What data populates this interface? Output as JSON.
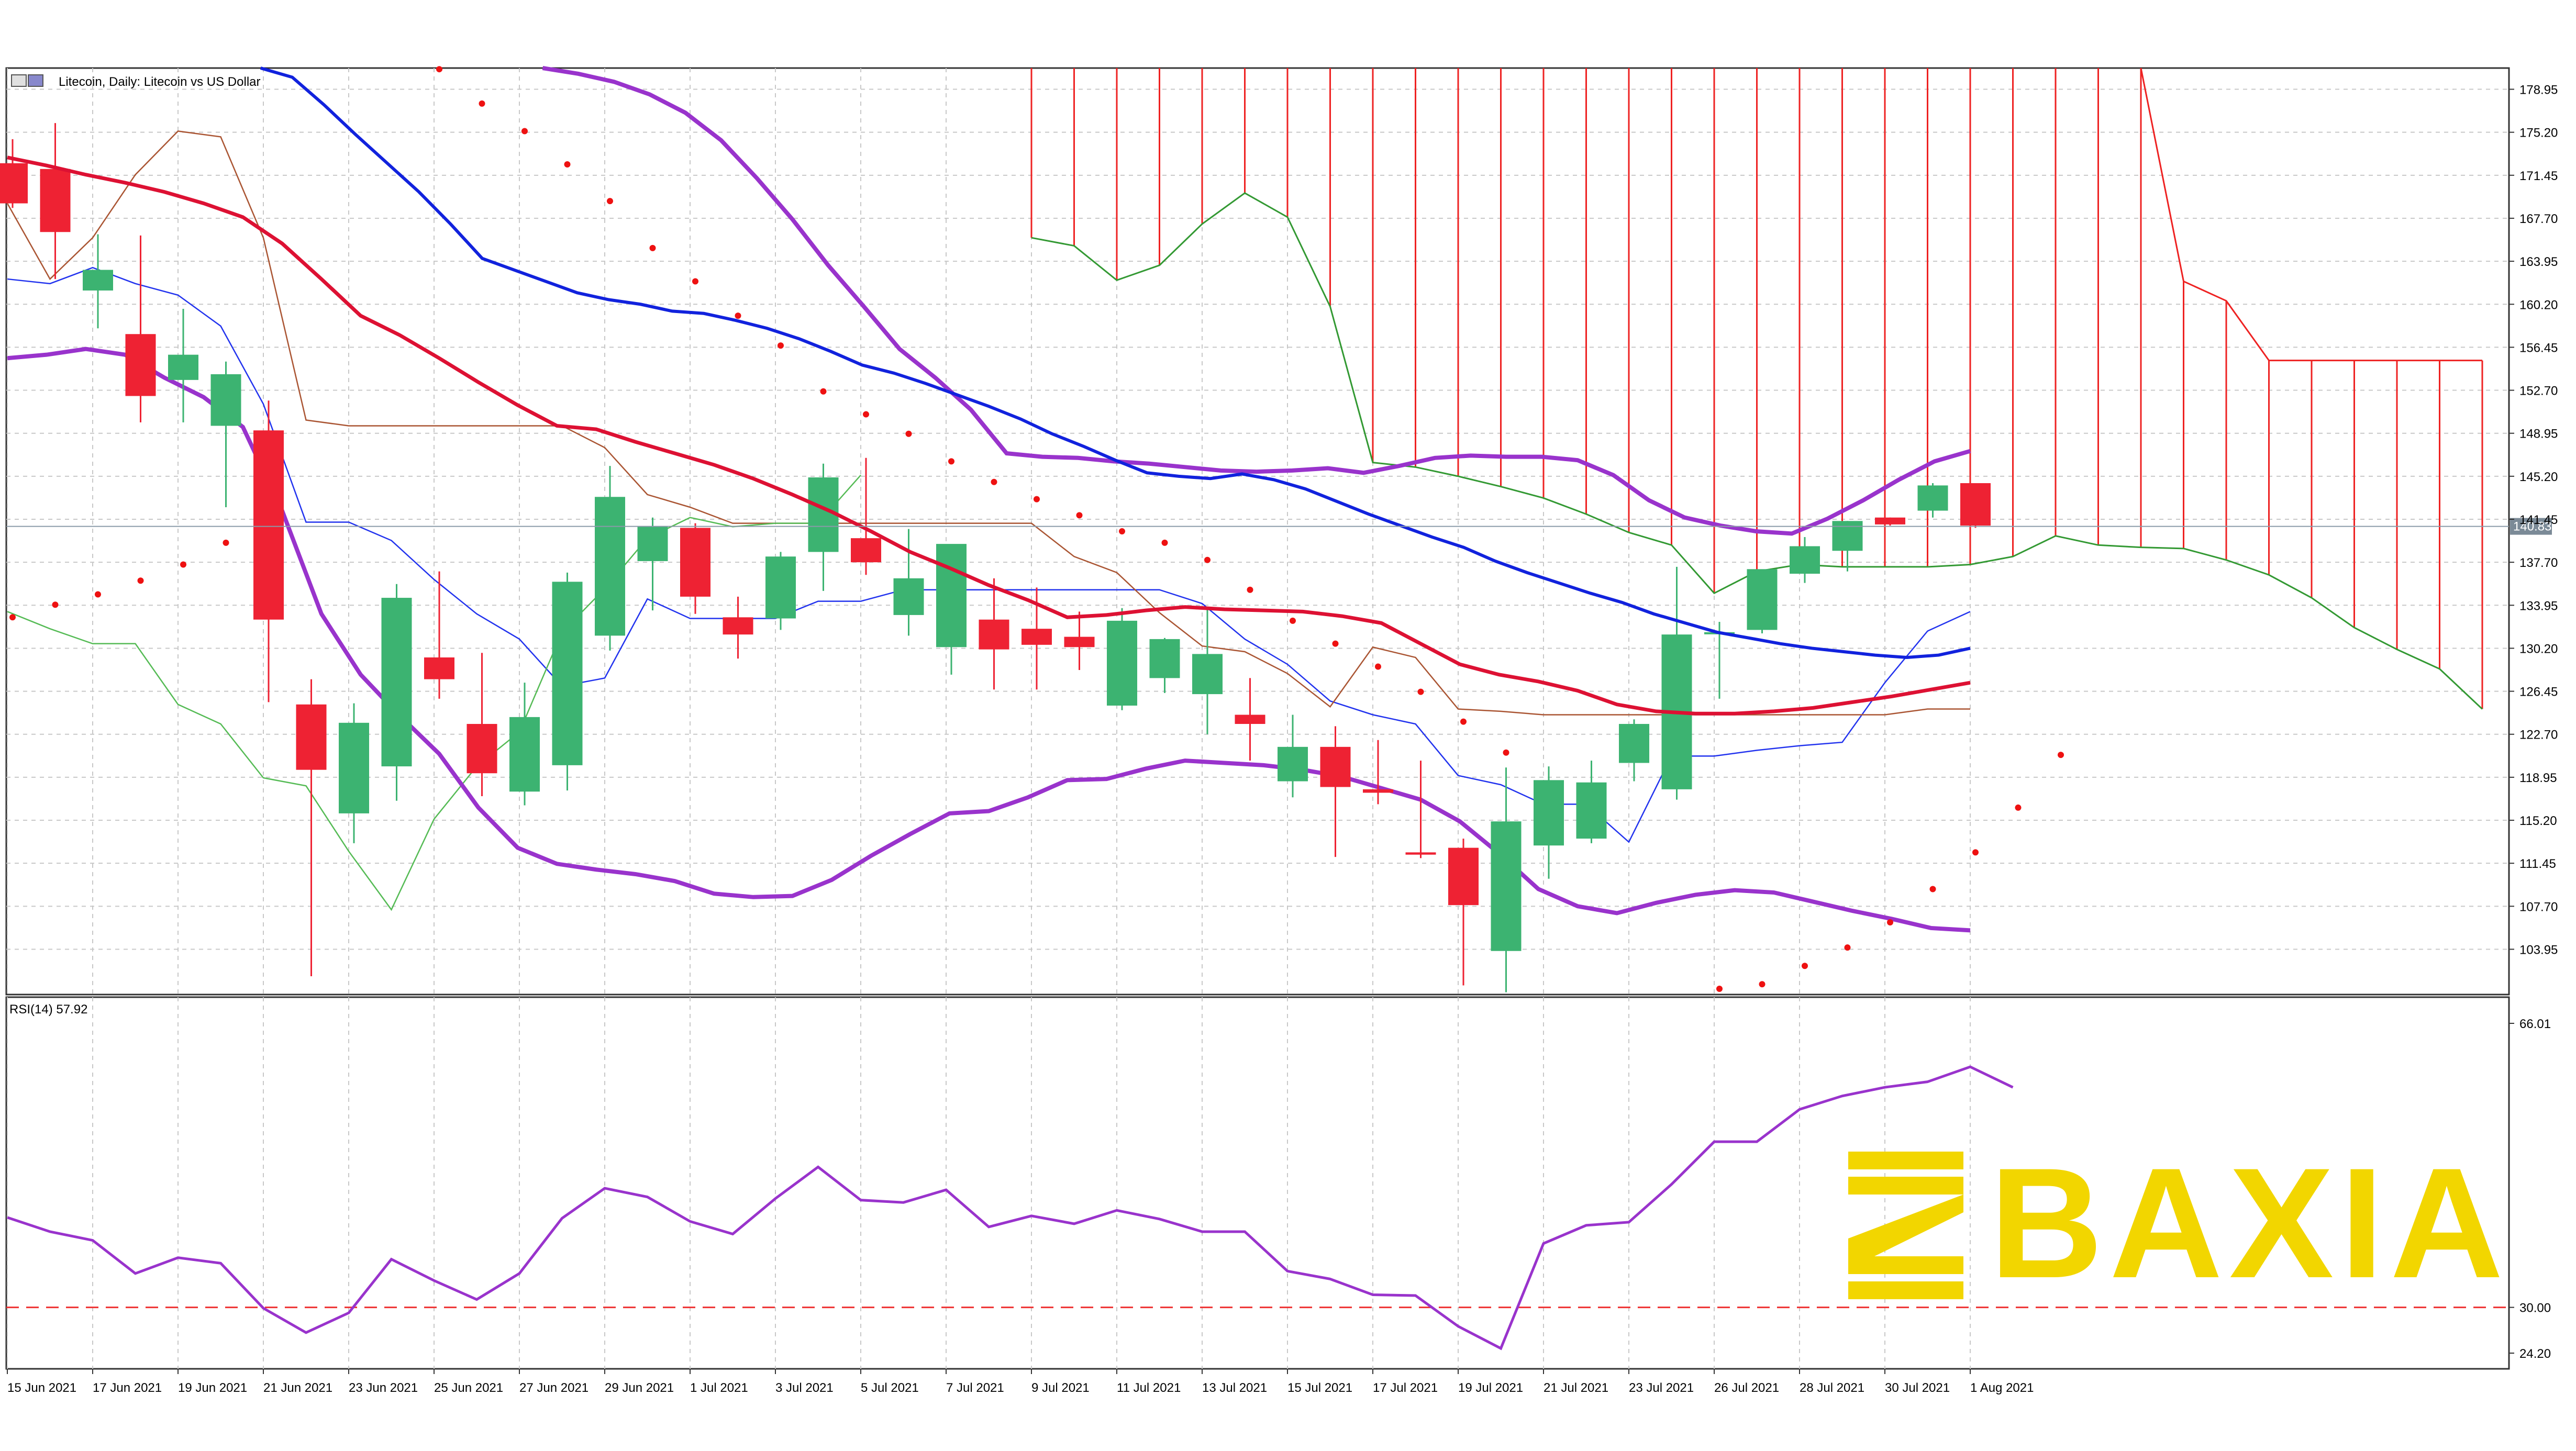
{
  "header": {
    "main_title": "Litecoin, Daily:  Litecoin vs US Dollar",
    "rsi_title": "RSI(14) 57.92"
  },
  "watermark": {
    "text": "BAXIA",
    "color": "#f2d600"
  },
  "colors": {
    "bull": "#3cb371",
    "bear": "#ee2233",
    "ma_fast": "#dd1133",
    "ma_slow": "#1122dd",
    "bollinger": "#9933cc",
    "sar": "#ee1111",
    "ichimoku_a": "#ee2222",
    "ichimoku_b": "#339933",
    "tenkan": "#2233ee",
    "kijun": "#aa5533",
    "chikou": "#55bb55",
    "rsi": "#9933cc",
    "grid": "#c8c8c8"
  },
  "chart_data": [
    {
      "type": "candlestick",
      "title": "Litecoin, Daily:  Litecoin vs US Dollar",
      "x_ticks": [
        "15 Jun 2021",
        "17 Jun 2021",
        "19 Jun 2021",
        "21 Jun 2021",
        "23 Jun 2021",
        "25 Jun 2021",
        "27 Jun 2021",
        "29 Jun 2021",
        "1 Jul 2021",
        "3 Jul 2021",
        "5 Jul 2021",
        "7 Jul 2021",
        "9 Jul 2021",
        "11 Jul 2021",
        "13 Jul 2021",
        "15 Jul 2021",
        "17 Jul 2021",
        "19 Jul 2021",
        "21 Jul 2021",
        "23 Jul 2021",
        "26 Jul 2021",
        "28 Jul 2021",
        "30 Jul 2021",
        "1 Aug 2021"
      ],
      "y_ticks": [
        "178.95",
        "175.20",
        "171.45",
        "167.70",
        "163.95",
        "160.20",
        "156.45",
        "152.70",
        "148.95",
        "145.20",
        "141.45",
        "137.70",
        "133.95",
        "130.20",
        "126.45",
        "122.70",
        "118.95",
        "115.20",
        "111.45",
        "107.70",
        "103.95"
      ],
      "ylim": [
        100.0,
        180.8
      ],
      "current_price": "140.83",
      "candles": [
        [
          172.5,
          174.6,
          168.6,
          169.0
        ],
        [
          172.0,
          176.0,
          162.4,
          166.5
        ],
        [
          161.4,
          166.3,
          158.1,
          163.2
        ],
        [
          157.6,
          166.2,
          149.9,
          152.2
        ],
        [
          153.6,
          159.8,
          149.9,
          155.8
        ],
        [
          149.6,
          155.2,
          142.5,
          154.1
        ],
        [
          149.2,
          151.8,
          125.5,
          132.7
        ],
        [
          125.3,
          127.5,
          101.6,
          119.6
        ],
        [
          115.8,
          125.4,
          113.2,
          123.7
        ],
        [
          119.9,
          135.8,
          116.9,
          134.6
        ],
        [
          129.4,
          136.9,
          125.8,
          127.5
        ],
        [
          123.6,
          129.8,
          117.3,
          119.3
        ],
        [
          117.7,
          127.2,
          116.5,
          124.2
        ],
        [
          120.0,
          136.8,
          117.8,
          136.0
        ],
        [
          131.3,
          146.1,
          130.0,
          143.4
        ],
        [
          137.8,
          141.6,
          133.5,
          140.8
        ],
        [
          140.7,
          141.1,
          133.2,
          134.7
        ],
        [
          132.9,
          134.7,
          129.3,
          131.4
        ],
        [
          132.8,
          138.6,
          131.8,
          138.2
        ],
        [
          138.6,
          146.3,
          135.2,
          145.1
        ],
        [
          139.8,
          146.8,
          136.6,
          137.7
        ],
        [
          133.1,
          140.6,
          131.3,
          136.3
        ],
        [
          130.3,
          139.2,
          127.9,
          139.3
        ],
        [
          132.7,
          136.3,
          126.6,
          130.1
        ],
        [
          131.9,
          135.5,
          126.6,
          130.5
        ],
        [
          131.2,
          133.4,
          128.3,
          130.3
        ],
        [
          125.2,
          133.7,
          124.8,
          132.6
        ],
        [
          127.6,
          131.1,
          126.3,
          131.0
        ],
        [
          126.2,
          133.7,
          122.7,
          129.7
        ],
        [
          124.4,
          127.6,
          120.4,
          123.6
        ],
        [
          118.6,
          124.4,
          117.2,
          121.6
        ],
        [
          121.6,
          123.4,
          112.0,
          118.1
        ],
        [
          117.9,
          122.2,
          116.6,
          117.6
        ],
        [
          112.4,
          120.4,
          111.9,
          112.2
        ],
        [
          112.8,
          113.6,
          100.8,
          107.8
        ],
        [
          103.8,
          119.8,
          100.2,
          115.1
        ],
        [
          113.0,
          119.9,
          110.1,
          118.7
        ],
        [
          113.6,
          120.4,
          113.2,
          118.5
        ],
        [
          120.2,
          124.0,
          118.6,
          123.6
        ],
        [
          117.9,
          137.3,
          117.0,
          131.4
        ],
        [
          131.5,
          132.5,
          125.8,
          131.6
        ],
        [
          131.8,
          137.0,
          131.5,
          137.1
        ],
        [
          136.7,
          139.9,
          135.9,
          139.1
        ],
        [
          138.7,
          141.3,
          136.9,
          141.3
        ],
        [
          141.6,
          141.6,
          140.9,
          141.0
        ],
        [
          142.2,
          144.6,
          141.6,
          144.4
        ],
        [
          144.6,
          144.6,
          140.7,
          140.9
        ]
      ],
      "series": [
        {
          "kind": "ma_fast",
          "values": [
            173.0,
            172.3,
            171.5,
            170.8,
            170.0,
            169.0,
            167.8,
            165.5,
            162.4,
            159.2,
            157.5,
            155.5,
            153.4,
            151.4,
            149.6,
            149.3,
            148.2,
            147.2,
            146.2,
            145.0,
            143.6,
            142.1,
            140.4,
            138.6,
            137.2,
            135.7,
            134.4,
            132.9,
            133.1,
            133.5,
            133.8,
            133.6,
            133.5,
            133.4,
            133.0,
            132.4,
            130.6,
            128.8,
            127.9,
            127.3,
            126.5,
            125.3,
            124.7,
            124.5,
            124.5,
            124.7,
            125.0,
            125.5,
            126.0,
            126.6,
            127.2
          ]
        },
        {
          "kind": "ma_slow",
          "values": [
            null,
            null,
            null,
            null,
            null,
            null,
            null,
            null,
            180.8,
            180.0,
            177.6,
            175.0,
            172.5,
            170.0,
            167.2,
            164.2,
            163.2,
            162.2,
            161.2,
            160.6,
            160.2,
            159.6,
            159.4,
            158.8,
            158.1,
            157.2,
            156.1,
            154.9,
            154.2,
            153.3,
            152.3,
            151.3,
            150.2,
            148.9,
            147.8,
            146.6,
            145.5,
            145.2,
            145.0,
            145.4,
            144.9,
            144.1,
            143.0,
            141.9,
            140.9,
            139.9,
            139.0,
            137.8,
            136.8,
            135.9,
            135.0,
            134.2,
            133.2,
            132.4,
            131.6,
            131.1,
            130.6,
            130.2,
            129.9,
            129.6,
            129.4,
            129.6,
            130.2
          ]
        },
        {
          "kind": "bb_upper",
          "values": [
            null,
            null,
            null,
            null,
            null,
            null,
            null,
            null,
            null,
            null,
            null,
            null,
            null,
            null,
            null,
            180.8,
            180.3,
            179.6,
            178.5,
            176.9,
            174.5,
            171.2,
            167.6,
            163.6,
            160.0,
            156.3,
            153.8,
            151.0,
            147.2,
            146.9,
            146.8,
            146.5,
            146.3,
            146.0,
            145.7,
            145.6,
            145.7,
            145.9,
            145.5,
            146.1,
            146.8,
            147.0,
            146.9,
            146.9,
            146.6,
            145.3,
            143.1,
            141.6,
            140.9,
            140.4,
            140.2,
            141.5,
            143.1,
            144.9,
            146.5,
            147.4
          ]
        },
        {
          "kind": "bb_middle",
          "values": [
            155.5,
            155.8,
            156.3,
            155.8,
            153.8,
            152.1,
            149.5,
            142.2,
            133.2,
            127.9,
            124.3,
            121.0,
            116.3,
            112.8,
            111.4,
            110.9,
            110.5,
            109.9,
            108.8,
            108.5,
            108.6,
            110.0,
            112.1,
            114.0,
            115.8,
            116.0,
            117.2,
            118.7,
            118.8,
            119.7,
            120.4,
            120.2,
            120.0,
            119.6,
            119.0,
            118.0,
            117.0,
            115.1,
            112.3,
            109.2,
            107.7,
            107.1,
            108.0,
            108.7,
            109.1,
            108.9,
            108.1,
            107.3,
            106.6,
            105.8,
            105.6
          ]
        },
        {
          "kind": "sar",
          "values": [
            132.9,
            134.0,
            134.9,
            136.1,
            137.5,
            139.4,
            null,
            null,
            null,
            null,
            180.7,
            177.7,
            175.3,
            172.4,
            169.2,
            165.1,
            162.2,
            159.2,
            156.6,
            152.6,
            150.6,
            148.9,
            146.5,
            144.7,
            143.2,
            141.8,
            140.4,
            139.4,
            137.9,
            135.3,
            132.6,
            130.6,
            128.6,
            126.4,
            123.8,
            121.1,
            null,
            null,
            null,
            null,
            100.5,
            100.9,
            102.5,
            104.1,
            106.3,
            109.2,
            112.4,
            116.3,
            120.9
          ]
        },
        {
          "kind": "chikou",
          "values": [
            null,
            null,
            null,
            null,
            null,
            null,
            null,
            null,
            null,
            null,
            null,
            null,
            null,
            null,
            null,
            null,
            null,
            null,
            null,
            null,
            null,
            null,
            null,
            null,
            null,
            null,
            null,
            null,
            null,
            null,
            null,
            null,
            null,
            null,
            null,
            null,
            null,
            null,
            null,
            null,
            null,
            null,
            null,
            null,
            null,
            null,
            null,
            null,
            null,
            null,
            null,
            null,
            null,
            null,
            null,
            null,
            null,
            null,
            null,
            null,
            null,
            null,
            null,
            null,
            null,
            null,
            null,
            null,
            null,
            null,
            null,
            null,
            null,
            null,
            null,
            null,
            null,
            null,
            null,
            null,
            null
          ]
        }
      ],
      "note": ""
    },
    {
      "type": "line",
      "title": "RSI(14) 57.92",
      "y_ticks": [
        "66.01",
        "30.00",
        "24.20"
      ],
      "ylim": [
        24.2,
        66.01
      ],
      "level": 30.0,
      "values": [
        41.4,
        39.6,
        38.5,
        34.3,
        36.3,
        35.6,
        29.9,
        26.8,
        29.3,
        36.1,
        33.4,
        31.0,
        34.3,
        41.3,
        45.1,
        44.0,
        40.9,
        39.3,
        43.8,
        47.8,
        43.6,
        43.3,
        44.9,
        40.2,
        41.6,
        40.6,
        42.3,
        41.2,
        39.6,
        39.6,
        34.6,
        33.6,
        31.6,
        31.5,
        27.6,
        24.8,
        38.1,
        40.4,
        40.8,
        45.6,
        51.0,
        51.0,
        55.1,
        56.8,
        57.9,
        58.6,
        60.5,
        57.9
      ]
    }
  ]
}
